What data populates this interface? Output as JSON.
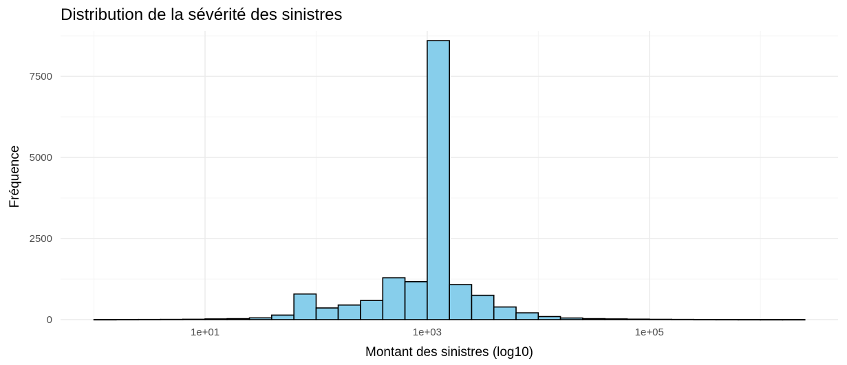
{
  "chart_data": {
    "type": "bar",
    "title": "Distribution de la sévérité des sinistres",
    "xlabel": "Montant des sinistres (log10)",
    "ylabel": "Fréquence",
    "x_scale": "log10",
    "xlim": [
      0.5,
      5000000
    ],
    "ylim": [
      0,
      8900
    ],
    "x_ticks": [
      10,
      1000,
      100000
    ],
    "x_tick_labels": [
      "1e+01",
      "1e+03",
      "1e+05"
    ],
    "y_ticks": [
      0,
      2500,
      5000,
      7500
    ],
    "y_tick_labels": [
      "0",
      "2500",
      "5000",
      "7500"
    ],
    "bin_width_log10": 0.2,
    "bins": [
      {
        "x_min": 1.0,
        "x_max": 1.58,
        "count": 3
      },
      {
        "x_min": 1.58,
        "x_max": 2.51,
        "count": 5
      },
      {
        "x_min": 2.51,
        "x_max": 3.98,
        "count": 6
      },
      {
        "x_min": 3.98,
        "x_max": 6.31,
        "count": 8
      },
      {
        "x_min": 6.31,
        "x_max": 10.0,
        "count": 12
      },
      {
        "x_min": 10.0,
        "x_max": 15.8,
        "count": 22
      },
      {
        "x_min": 15.8,
        "x_max": 25.1,
        "count": 30
      },
      {
        "x_min": 25.1,
        "x_max": 39.8,
        "count": 55
      },
      {
        "x_min": 39.8,
        "x_max": 63.1,
        "count": 140
      },
      {
        "x_min": 63.1,
        "x_max": 100,
        "count": 790
      },
      {
        "x_min": 100,
        "x_max": 158,
        "count": 360
      },
      {
        "x_min": 158,
        "x_max": 251,
        "count": 450
      },
      {
        "x_min": 251,
        "x_max": 398,
        "count": 590
      },
      {
        "x_min": 398,
        "x_max": 631,
        "count": 1290
      },
      {
        "x_min": 631,
        "x_max": 1000,
        "count": 1170
      },
      {
        "x_min": 1000,
        "x_max": 1585,
        "count": 8600
      },
      {
        "x_min": 1585,
        "x_max": 2512,
        "count": 1080
      },
      {
        "x_min": 2512,
        "x_max": 3981,
        "count": 750
      },
      {
        "x_min": 3981,
        "x_max": 6310,
        "count": 390
      },
      {
        "x_min": 6310,
        "x_max": 10000,
        "count": 210
      },
      {
        "x_min": 10000,
        "x_max": 15849,
        "count": 95
      },
      {
        "x_min": 15849,
        "x_max": 25119,
        "count": 50
      },
      {
        "x_min": 25119,
        "x_max": 39811,
        "count": 30
      },
      {
        "x_min": 39811,
        "x_max": 63096,
        "count": 22
      },
      {
        "x_min": 63096,
        "x_max": 100000,
        "count": 15
      },
      {
        "x_min": 100000,
        "x_max": 158489,
        "count": 10
      },
      {
        "x_min": 158489,
        "x_max": 251189,
        "count": 7
      },
      {
        "x_min": 251189,
        "x_max": 398107,
        "count": 5
      },
      {
        "x_min": 398107,
        "x_max": 630957,
        "count": 4
      },
      {
        "x_min": 630957,
        "x_max": 1000000,
        "count": 3
      },
      {
        "x_min": 1000000,
        "x_max": 1584893,
        "count": 2
      },
      {
        "x_min": 1584893,
        "x_max": 2511886,
        "count": 2
      }
    ],
    "bar_fill": "#87ceeb",
    "bar_stroke": "#000000",
    "grid": true,
    "grid_major_color": "#ebebeb",
    "grid_minor_color": "#f4f4f4",
    "legend": "none"
  }
}
